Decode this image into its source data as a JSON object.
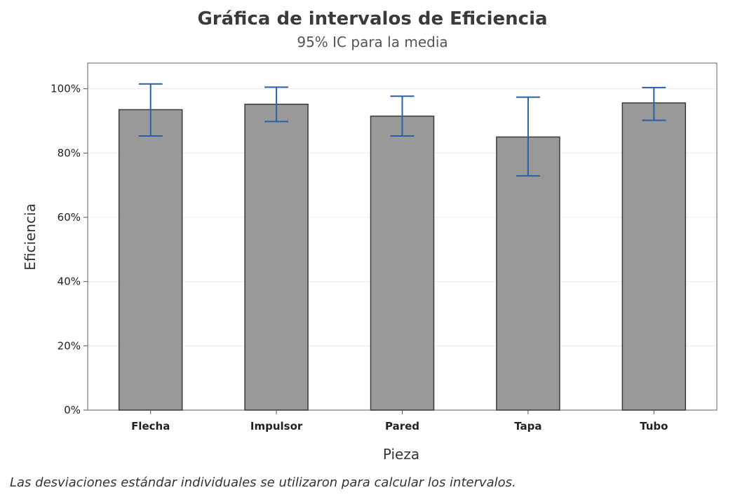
{
  "chart_data": {
    "type": "bar",
    "title": "Gráfica de intervalos de Eficiencia",
    "subtitle": "95% IC para la media",
    "xlabel": "Pieza",
    "ylabel": "Eficiencia",
    "categories": [
      "Flecha",
      "Impulsor",
      "Pared",
      "Tapa",
      "Tubo"
    ],
    "values": [
      93.5,
      95.2,
      91.5,
      85.0,
      95.6
    ],
    "ci_lower": [
      85.3,
      89.8,
      85.3,
      72.9,
      90.2
    ],
    "ci_upper": [
      101.5,
      100.5,
      97.7,
      97.4,
      100.4
    ],
    "ylim": [
      0,
      108
    ],
    "yticks": [
      0,
      20,
      40,
      60,
      80,
      100
    ],
    "ytick_labels": [
      "0%",
      "20%",
      "40%",
      "60%",
      "80%",
      "100%"
    ],
    "grid": true,
    "bar_color": "#999999",
    "bar_edge_color": "#3a3a3a",
    "errorbar_color": "#2b5fa8"
  },
  "footnote": "Las desviaciones estándar individuales se utilizaron para calcular los intervalos."
}
